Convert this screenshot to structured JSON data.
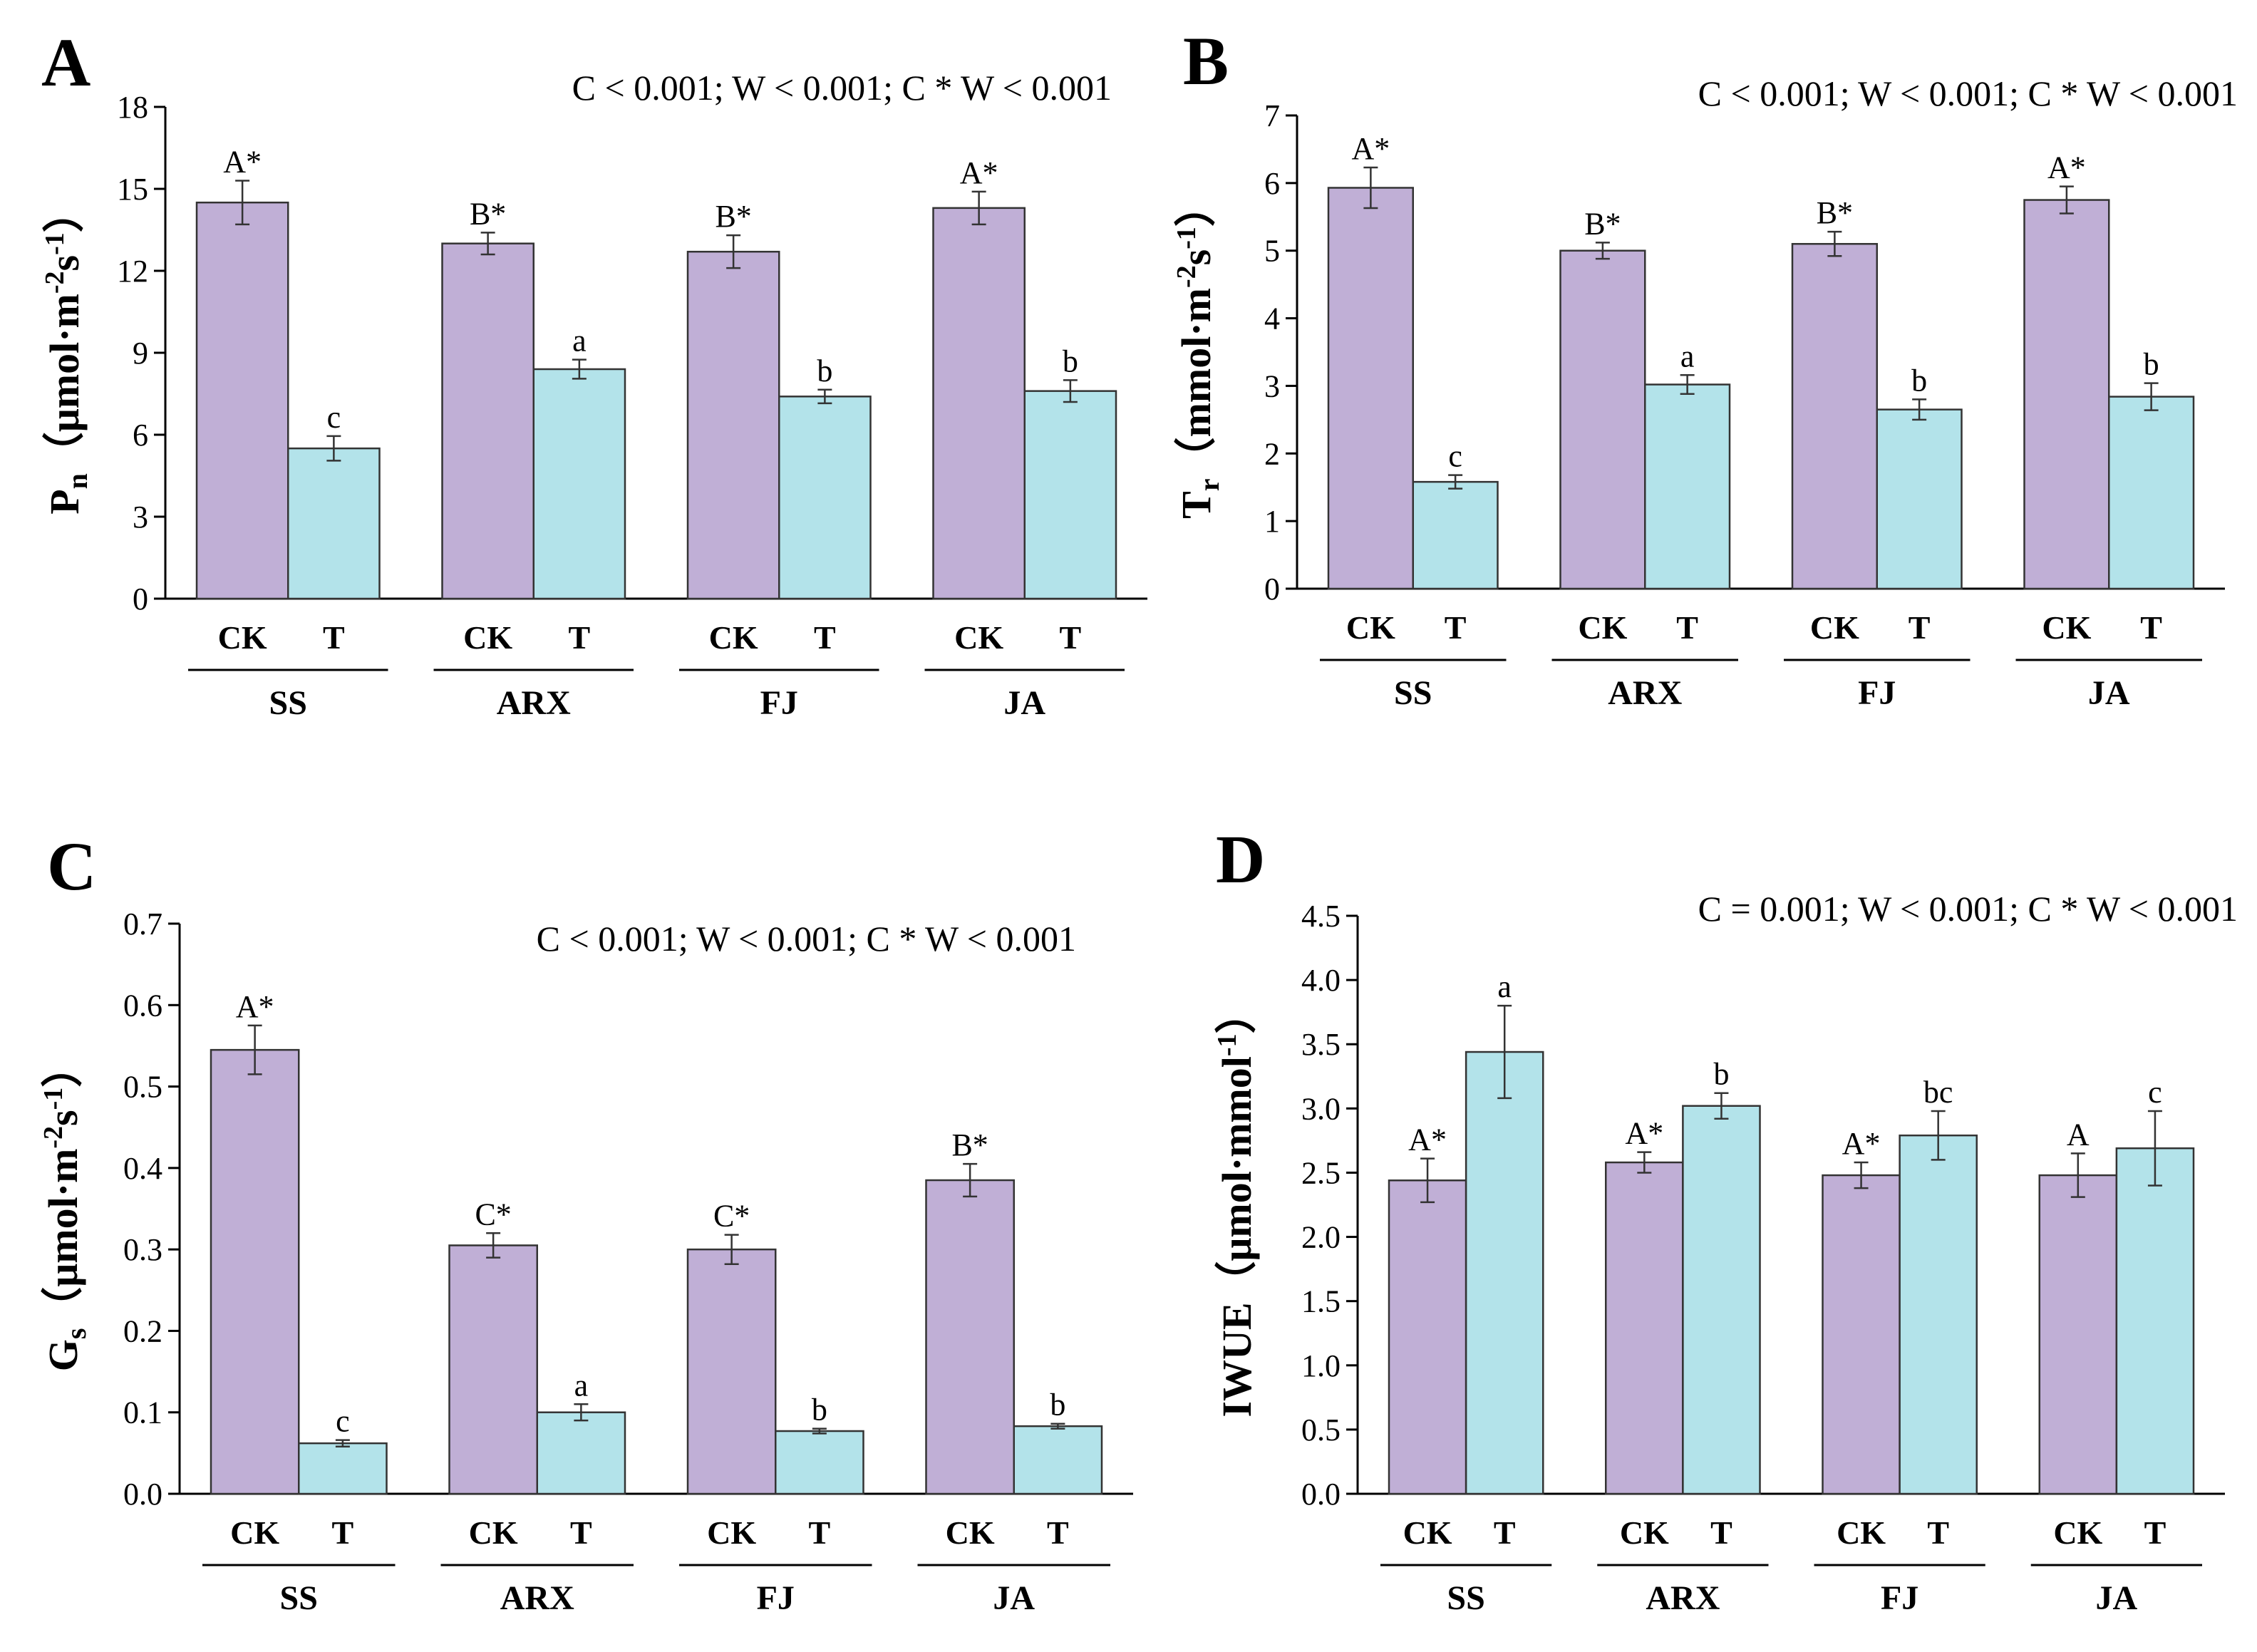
{
  "colors": {
    "ck": "#c0afd6",
    "t": "#b3e3ea",
    "stroke": "#333333"
  },
  "chart_data": [
    {
      "type": "bar",
      "panel": "A",
      "stats": "C < 0.001; W < 0.001; C * W < 0.001",
      "ylabel_main": "P",
      "ylabel_sub": "n",
      "ylabel_unit_pre": "（μmol·m",
      "ylabel_unit_e1": "-2",
      "ylabel_unit_mid": "s",
      "ylabel_unit_e2": "-1",
      "ylabel_unit_post": "）",
      "ylim": [
        0,
        18
      ],
      "yticks": [
        "0",
        "3",
        "6",
        "9",
        "12",
        "15",
        "18"
      ],
      "treatments": [
        "CK",
        "T"
      ],
      "groups": [
        "SS",
        "ARX",
        "FJ",
        "JA"
      ],
      "series": [
        {
          "name": "CK",
          "values": [
            14.5,
            13.0,
            12.7,
            14.3
          ],
          "errors": [
            0.8,
            0.4,
            0.6,
            0.6
          ],
          "labels": [
            "A*",
            "B*",
            "B*",
            "A*"
          ]
        },
        {
          "name": "T",
          "values": [
            5.5,
            8.4,
            7.4,
            7.6
          ],
          "errors": [
            0.45,
            0.35,
            0.25,
            0.4
          ],
          "labels": [
            "c",
            "a",
            "b",
            "b"
          ]
        }
      ]
    },
    {
      "type": "bar",
      "panel": "B",
      "stats": "C < 0.001; W < 0.001; C * W < 0.001",
      "ylabel_main": "T",
      "ylabel_sub": "r",
      "ylabel_unit_pre": "（mmol·m",
      "ylabel_unit_e1": "-2",
      "ylabel_unit_mid": "s",
      "ylabel_unit_e2": "-1",
      "ylabel_unit_post": "）",
      "ylim": [
        0,
        7
      ],
      "yticks": [
        "0",
        "1",
        "2",
        "3",
        "4",
        "5",
        "6",
        "7"
      ],
      "treatments": [
        "CK",
        "T"
      ],
      "groups": [
        "SS",
        "ARX",
        "FJ",
        "JA"
      ],
      "series": [
        {
          "name": "CK",
          "values": [
            5.93,
            5.0,
            5.1,
            5.75
          ],
          "errors": [
            0.3,
            0.12,
            0.18,
            0.2
          ],
          "labels": [
            "A*",
            "B*",
            "B*",
            "A*"
          ]
        },
        {
          "name": "T",
          "values": [
            1.58,
            3.02,
            2.65,
            2.84
          ],
          "errors": [
            0.1,
            0.14,
            0.15,
            0.2
          ],
          "labels": [
            "c",
            "a",
            "b",
            "b"
          ]
        }
      ]
    },
    {
      "type": "bar",
      "panel": "C",
      "stats": "C < 0.001; W < 0.001; C * W < 0.001",
      "ylabel_main": "G",
      "ylabel_sub": "s",
      "ylabel_unit_pre": "（μmol·m",
      "ylabel_unit_e1": "-2",
      "ylabel_unit_mid": "s",
      "ylabel_unit_e2": "-1",
      "ylabel_unit_post": "）",
      "ylim": [
        0,
        0.7
      ],
      "yticks": [
        "0.0",
        "0.1",
        "0.2",
        "0.3",
        "0.4",
        "0.5",
        "0.6",
        "0.7"
      ],
      "treatments": [
        "CK",
        "T"
      ],
      "groups": [
        "SS",
        "ARX",
        "FJ",
        "JA"
      ],
      "series": [
        {
          "name": "CK",
          "values": [
            0.545,
            0.305,
            0.3,
            0.385
          ],
          "errors": [
            0.03,
            0.015,
            0.018,
            0.02
          ],
          "labels": [
            "A*",
            "C*",
            "C*",
            "B*"
          ]
        },
        {
          "name": "T",
          "values": [
            0.062,
            0.1,
            0.077,
            0.083
          ],
          "errors": [
            0.004,
            0.01,
            0.003,
            0.003
          ],
          "labels": [
            "c",
            "a",
            "b",
            "b"
          ]
        }
      ]
    },
    {
      "type": "bar",
      "panel": "D",
      "stats": "C = 0.001; W < 0.001; C * W < 0.001",
      "ylabel_main": "IWUE",
      "ylabel_sub": "",
      "ylabel_unit_pre": "（μmol·mmol",
      "ylabel_unit_e1": "-1",
      "ylabel_unit_mid": "",
      "ylabel_unit_e2": "",
      "ylabel_unit_post": "）",
      "ylim": [
        0,
        4.5
      ],
      "yticks": [
        "0.0",
        "0.5",
        "1.0",
        "1.5",
        "2.0",
        "2.5",
        "3.0",
        "3.5",
        "4.0",
        "4.5"
      ],
      "treatments": [
        "CK",
        "T"
      ],
      "groups": [
        "SS",
        "ARX",
        "FJ",
        "JA"
      ],
      "series": [
        {
          "name": "CK",
          "values": [
            2.44,
            2.58,
            2.48,
            2.48
          ],
          "errors": [
            0.17,
            0.08,
            0.1,
            0.17
          ],
          "labels": [
            "A*",
            "A*",
            "A*",
            "A"
          ]
        },
        {
          "name": "T",
          "values": [
            3.44,
            3.02,
            2.79,
            2.69
          ],
          "errors": [
            0.36,
            0.1,
            0.19,
            0.29
          ],
          "labels": [
            "a",
            "b",
            "bc",
            "c"
          ]
        }
      ]
    }
  ]
}
